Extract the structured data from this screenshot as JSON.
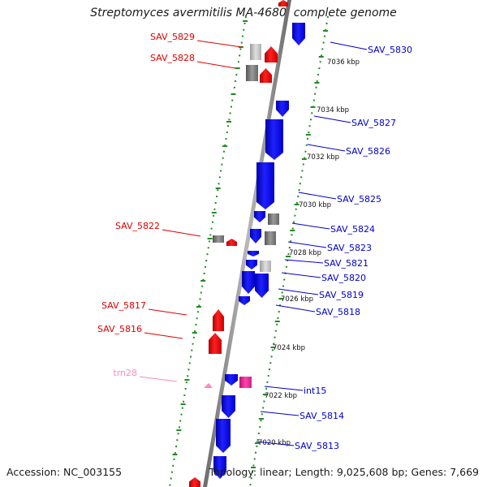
{
  "title": "Streptomyces avermitilis MA-4680, complete genome",
  "accession": "Accession: NC_003155",
  "topology": "Topology: linear; Length: 9,025,608 bp; Genes: 7,669",
  "colors": {
    "forward_gene": "#ff0000",
    "reverse_gene": "#0000ff",
    "forward_label": "#e00000",
    "reverse_label": "#0000cc",
    "rna_label": "#ff88bb",
    "pink_gene": "#ee3399",
    "tick_mark": "#228b22",
    "chromosome": "#808080"
  },
  "scale_labels": [
    "7036 kbp",
    "7034 kbp",
    "7032 kbp",
    "7030 kbp",
    "7028 kbp",
    "7026 kbp",
    "7024 kbp",
    "7022 kbp",
    "7020 kbp"
  ],
  "left_labels": [
    {
      "text": "SAV_5829",
      "kind": "forward"
    },
    {
      "text": "SAV_5828",
      "kind": "forward"
    },
    {
      "text": "SAV_5822",
      "kind": "forward"
    },
    {
      "text": "SAV_5817",
      "kind": "forward"
    },
    {
      "text": "SAV_5816",
      "kind": "forward"
    },
    {
      "text": "trn28",
      "kind": "rna"
    }
  ],
  "right_labels": [
    {
      "text": "SAV_5830"
    },
    {
      "text": "SAV_5827"
    },
    {
      "text": "SAV_5826"
    },
    {
      "text": "SAV_5825"
    },
    {
      "text": "SAV_5824"
    },
    {
      "text": "SAV_5823"
    },
    {
      "text": "SAV_5821"
    },
    {
      "text": "SAV_5820"
    },
    {
      "text": "SAV_5819"
    },
    {
      "text": "SAV_5818"
    },
    {
      "text": "int15"
    },
    {
      "text": "SAV_5814"
    },
    {
      "text": "SAV_5813"
    }
  ]
}
